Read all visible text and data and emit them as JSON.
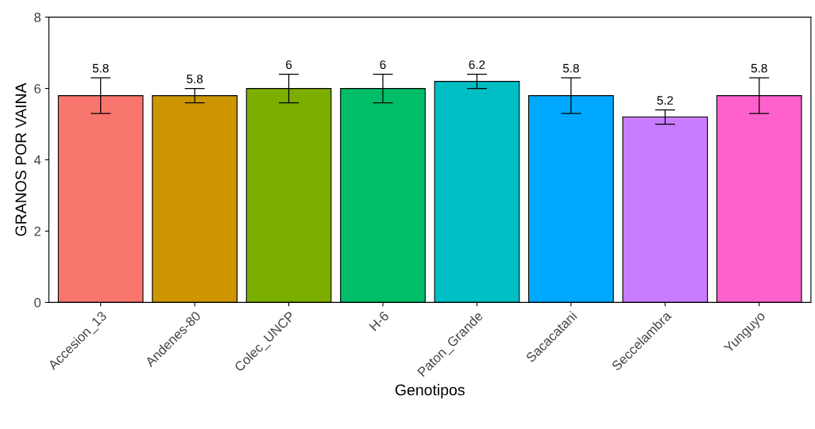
{
  "chart_data": {
    "type": "bar",
    "xlabel": "Genotipos",
    "ylabel": "GRANOS POR VAINA",
    "categories": [
      "Accesion_13",
      "Andenes-80",
      "Colec_UNCP",
      "H-6",
      "Paton_Grande",
      "Sacacatani",
      "Seccelambra",
      "Yunguyo"
    ],
    "values": [
      5.8,
      5.8,
      6,
      6,
      6.2,
      5.8,
      5.2,
      5.8
    ],
    "errors": [
      0.5,
      0.2,
      0.4,
      0.4,
      0.2,
      0.5,
      0.2,
      0.5
    ],
    "colors": [
      "#f8766d",
      "#cd9600",
      "#7cae00",
      "#00be67",
      "#00bfc4",
      "#00a9ff",
      "#c77cff",
      "#ff61cc"
    ],
    "ylim": [
      0,
      8
    ],
    "yticks": [
      0,
      2,
      4,
      6,
      8
    ],
    "grid": false,
    "data_labels": true
  }
}
